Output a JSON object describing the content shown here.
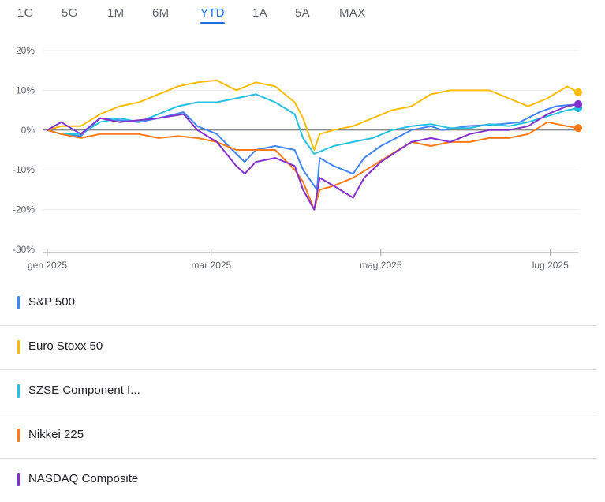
{
  "range_tabs": [
    {
      "label": "1G",
      "active": false
    },
    {
      "label": "5G",
      "active": false
    },
    {
      "label": "1M",
      "active": false
    },
    {
      "label": "6M",
      "active": false
    },
    {
      "label": "YTD",
      "active": true
    },
    {
      "label": "1A",
      "active": false
    },
    {
      "label": "5A",
      "active": false
    },
    {
      "label": "MAX",
      "active": false
    }
  ],
  "legend": [
    {
      "label": "S&P 500",
      "color": "#4285f4"
    },
    {
      "label": "Euro Stoxx 50",
      "color": "#fbbc04"
    },
    {
      "label": "SZSE Component I...",
      "color": "#24c1e0"
    },
    {
      "label": "Nikkei 225",
      "color": "#fa7b17"
    },
    {
      "label": "NASDAQ Composite",
      "color": "#8430ce"
    }
  ],
  "chart_data": {
    "type": "line",
    "y_unit": "%",
    "ylim": [
      -30,
      20
    ],
    "y_ticks": [
      20,
      10,
      0,
      -10,
      -20,
      -30
    ],
    "y_tick_labels": [
      "20%",
      "10%",
      "0%",
      "-10%",
      "-20%",
      "-30%"
    ],
    "xlim": [
      "2025-01-01",
      "2025-07-11"
    ],
    "x_ticks": [
      "2025-01-01",
      "2025-03-01",
      "2025-05-01",
      "2025-07-01"
    ],
    "x_tick_labels": [
      "gen 2025",
      "mar 2025",
      "mag 2025",
      "lug 2025"
    ],
    "grid": true,
    "zero_line": true,
    "series": [
      {
        "name": "S&P 500",
        "color": "#4285f4",
        "points": [
          [
            "2025-01-01",
            0
          ],
          [
            "2025-01-06",
            -1
          ],
          [
            "2025-01-13",
            -1.5
          ],
          [
            "2025-01-20",
            3
          ],
          [
            "2025-01-27",
            2.5
          ],
          [
            "2025-02-03",
            2
          ],
          [
            "2025-02-10",
            3
          ],
          [
            "2025-02-19",
            4.5
          ],
          [
            "2025-02-24",
            1
          ],
          [
            "2025-03-03",
            -1
          ],
          [
            "2025-03-10",
            -6
          ],
          [
            "2025-03-13",
            -8
          ],
          [
            "2025-03-17",
            -5
          ],
          [
            "2025-03-24",
            -4
          ],
          [
            "2025-03-31",
            -5
          ],
          [
            "2025-04-03",
            -10
          ],
          [
            "2025-04-08",
            -15
          ],
          [
            "2025-04-09",
            -7
          ],
          [
            "2025-04-14",
            -9
          ],
          [
            "2025-04-21",
            -11
          ],
          [
            "2025-04-25",
            -7
          ],
          [
            "2025-05-01",
            -4
          ],
          [
            "2025-05-12",
            0
          ],
          [
            "2025-05-19",
            1
          ],
          [
            "2025-05-23",
            0
          ],
          [
            "2025-06-01",
            1
          ],
          [
            "2025-06-13",
            1.5
          ],
          [
            "2025-06-20",
            2
          ],
          [
            "2025-06-27",
            4.5
          ],
          [
            "2025-07-03",
            6
          ],
          [
            "2025-07-11",
            6.5
          ]
        ]
      },
      {
        "name": "Euro Stoxx 50",
        "color": "#fbbc04",
        "points": [
          [
            "2025-01-01",
            0
          ],
          [
            "2025-01-06",
            1
          ],
          [
            "2025-01-13",
            1
          ],
          [
            "2025-01-20",
            4
          ],
          [
            "2025-01-27",
            6
          ],
          [
            "2025-02-03",
            7
          ],
          [
            "2025-02-10",
            9
          ],
          [
            "2025-02-17",
            11
          ],
          [
            "2025-02-24",
            12
          ],
          [
            "2025-03-03",
            12.5
          ],
          [
            "2025-03-10",
            10
          ],
          [
            "2025-03-17",
            12
          ],
          [
            "2025-03-24",
            11
          ],
          [
            "2025-03-31",
            7
          ],
          [
            "2025-04-03",
            3
          ],
          [
            "2025-04-07",
            -5
          ],
          [
            "2025-04-09",
            -1
          ],
          [
            "2025-04-14",
            0
          ],
          [
            "2025-04-21",
            1
          ],
          [
            "2025-04-28",
            3
          ],
          [
            "2025-05-05",
            5
          ],
          [
            "2025-05-12",
            6
          ],
          [
            "2025-05-19",
            9
          ],
          [
            "2025-05-26",
            10
          ],
          [
            "2025-06-02",
            10
          ],
          [
            "2025-06-09",
            10
          ],
          [
            "2025-06-16",
            8
          ],
          [
            "2025-06-23",
            6
          ],
          [
            "2025-06-30",
            8
          ],
          [
            "2025-07-07",
            11
          ],
          [
            "2025-07-11",
            9.5
          ]
        ]
      },
      {
        "name": "SZSE Component I...",
        "color": "#24c1e0",
        "points": [
          [
            "2025-01-01",
            0
          ],
          [
            "2025-01-06",
            -1
          ],
          [
            "2025-01-13",
            -1
          ],
          [
            "2025-01-20",
            2
          ],
          [
            "2025-01-27",
            3
          ],
          [
            "2025-02-03",
            2
          ],
          [
            "2025-02-10",
            4
          ],
          [
            "2025-02-17",
            6
          ],
          [
            "2025-02-24",
            7
          ],
          [
            "2025-03-03",
            7
          ],
          [
            "2025-03-10",
            8
          ],
          [
            "2025-03-17",
            9
          ],
          [
            "2025-03-24",
            7
          ],
          [
            "2025-03-31",
            4
          ],
          [
            "2025-04-03",
            -2
          ],
          [
            "2025-04-07",
            -6
          ],
          [
            "2025-04-14",
            -4
          ],
          [
            "2025-04-21",
            -3
          ],
          [
            "2025-04-28",
            -2
          ],
          [
            "2025-05-05",
            0
          ],
          [
            "2025-05-12",
            1
          ],
          [
            "2025-05-19",
            1.5
          ],
          [
            "2025-05-26",
            0.5
          ],
          [
            "2025-06-02",
            0.5
          ],
          [
            "2025-06-09",
            1.5
          ],
          [
            "2025-06-16",
            1
          ],
          [
            "2025-06-23",
            2
          ],
          [
            "2025-06-30",
            3.5
          ],
          [
            "2025-07-07",
            5
          ],
          [
            "2025-07-11",
            5.5
          ]
        ]
      },
      {
        "name": "Nikkei 225",
        "color": "#fa7b17",
        "points": [
          [
            "2025-01-01",
            0
          ],
          [
            "2025-01-06",
            -1
          ],
          [
            "2025-01-13",
            -2
          ],
          [
            "2025-01-20",
            -1
          ],
          [
            "2025-01-27",
            -1
          ],
          [
            "2025-02-03",
            -1
          ],
          [
            "2025-02-10",
            -2
          ],
          [
            "2025-02-17",
            -1.5
          ],
          [
            "2025-02-24",
            -2
          ],
          [
            "2025-03-03",
            -3
          ],
          [
            "2025-03-10",
            -5
          ],
          [
            "2025-03-17",
            -5
          ],
          [
            "2025-03-24",
            -5
          ],
          [
            "2025-03-31",
            -10
          ],
          [
            "2025-04-03",
            -13
          ],
          [
            "2025-04-07",
            -20
          ],
          [
            "2025-04-09",
            -15
          ],
          [
            "2025-04-14",
            -14
          ],
          [
            "2025-04-21",
            -12
          ],
          [
            "2025-04-28",
            -9
          ],
          [
            "2025-05-05",
            -6
          ],
          [
            "2025-05-12",
            -3
          ],
          [
            "2025-05-19",
            -4
          ],
          [
            "2025-05-26",
            -3
          ],
          [
            "2025-06-02",
            -3
          ],
          [
            "2025-06-09",
            -2
          ],
          [
            "2025-06-16",
            -2
          ],
          [
            "2025-06-23",
            -1
          ],
          [
            "2025-06-30",
            2
          ],
          [
            "2025-07-07",
            1
          ],
          [
            "2025-07-11",
            0.5
          ]
        ]
      },
      {
        "name": "NASDAQ Composite",
        "color": "#8430ce",
        "points": [
          [
            "2025-01-01",
            0
          ],
          [
            "2025-01-06",
            2
          ],
          [
            "2025-01-13",
            -1
          ],
          [
            "2025-01-20",
            3
          ],
          [
            "2025-01-27",
            2
          ],
          [
            "2025-02-03",
            2.5
          ],
          [
            "2025-02-10",
            3
          ],
          [
            "2025-02-19",
            4
          ],
          [
            "2025-02-24",
            0
          ],
          [
            "2025-03-03",
            -3
          ],
          [
            "2025-03-10",
            -9
          ],
          [
            "2025-03-13",
            -11
          ],
          [
            "2025-03-17",
            -8
          ],
          [
            "2025-03-24",
            -7
          ],
          [
            "2025-03-31",
            -9
          ],
          [
            "2025-04-03",
            -15
          ],
          [
            "2025-04-07",
            -20
          ],
          [
            "2025-04-09",
            -12
          ],
          [
            "2025-04-14",
            -14
          ],
          [
            "2025-04-21",
            -17
          ],
          [
            "2025-04-25",
            -12
          ],
          [
            "2025-05-01",
            -8
          ],
          [
            "2025-05-12",
            -3
          ],
          [
            "2025-05-19",
            -2
          ],
          [
            "2025-05-26",
            -3
          ],
          [
            "2025-06-02",
            -1
          ],
          [
            "2025-06-09",
            0
          ],
          [
            "2025-06-16",
            0
          ],
          [
            "2025-06-23",
            1
          ],
          [
            "2025-06-30",
            4
          ],
          [
            "2025-07-07",
            6
          ],
          [
            "2025-07-11",
            6.5
          ]
        ]
      }
    ]
  }
}
